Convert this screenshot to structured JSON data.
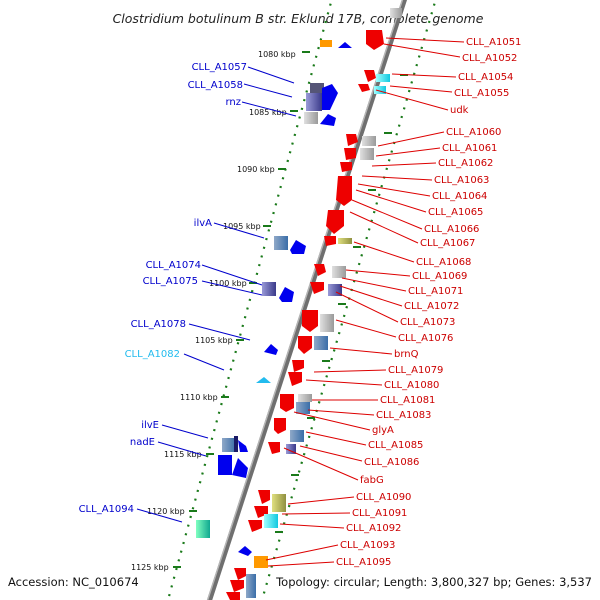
{
  "title": "Clostridium botulinum B str. Eklund 17B, complete genome",
  "accession": "Accession: NC_010674",
  "topology": "Topology: circular; Length: 3,800,327 bp; Genes: 3,537",
  "bp_labels": [
    "1080 kbp",
    "1085 kbp",
    "1090 kbp",
    "1095 kbp",
    "1100 kbp",
    "1105 kbp",
    "1110 kbp",
    "1115 kbp",
    "1120 kbp",
    "1125 kbp"
  ],
  "left_genes": [
    {
      "label": "CLL_A1057",
      "color": "#0000cc"
    },
    {
      "label": "CLL_A1058",
      "color": "#0000cc"
    },
    {
      "label": "rnz",
      "color": "#0000cc"
    },
    {
      "label": "ilvA",
      "color": "#0000cc"
    },
    {
      "label": "CLL_A1074",
      "color": "#0000cc"
    },
    {
      "label": "CLL_A1075",
      "color": "#0000cc"
    },
    {
      "label": "CLL_A1078",
      "color": "#0000cc"
    },
    {
      "label": "CLL_A1082",
      "color": "#22bbee"
    },
    {
      "label": "ilvE",
      "color": "#0000cc"
    },
    {
      "label": "nadE",
      "color": "#0000cc"
    },
    {
      "label": "CLL_A1094",
      "color": "#0000cc"
    }
  ],
  "right_genes": [
    {
      "label": "CLL_A1051"
    },
    {
      "label": "CLL_A1052"
    },
    {
      "label": "CLL_A1054"
    },
    {
      "label": "CLL_A1055"
    },
    {
      "label": "udk"
    },
    {
      "label": "CLL_A1060"
    },
    {
      "label": "CLL_A1061"
    },
    {
      "label": "CLL_A1062"
    },
    {
      "label": "CLL_A1063"
    },
    {
      "label": "CLL_A1064"
    },
    {
      "label": "CLL_A1065"
    },
    {
      "label": "CLL_A1066"
    },
    {
      "label": "CLL_A1067"
    },
    {
      "label": "CLL_A1068"
    },
    {
      "label": "CLL_A1069"
    },
    {
      "label": "CLL_A1071"
    },
    {
      "label": "CLL_A1072"
    },
    {
      "label": "CLL_A1073"
    },
    {
      "label": "CLL_A1076"
    },
    {
      "label": "brnQ"
    },
    {
      "label": "CLL_A1079"
    },
    {
      "label": "CLL_A1080"
    },
    {
      "label": "CLL_A1081"
    },
    {
      "label": "CLL_A1083"
    },
    {
      "label": "glyA"
    },
    {
      "label": "CLL_A1085"
    },
    {
      "label": "CLL_A1086"
    },
    {
      "label": "fabG"
    },
    {
      "label": "CLL_A1090"
    },
    {
      "label": "CLL_A1091"
    },
    {
      "label": "CLL_A1092"
    },
    {
      "label": "CLL_A1093"
    },
    {
      "label": "CLL_A1095"
    }
  ],
  "colors": {
    "forward_strand": "#ee0000",
    "reverse_strand": "#0000ee",
    "backbone": "#808080",
    "ticks": "#1a7a1a",
    "right_labels": "#cc0000",
    "left_labels": "#0000cc"
  }
}
